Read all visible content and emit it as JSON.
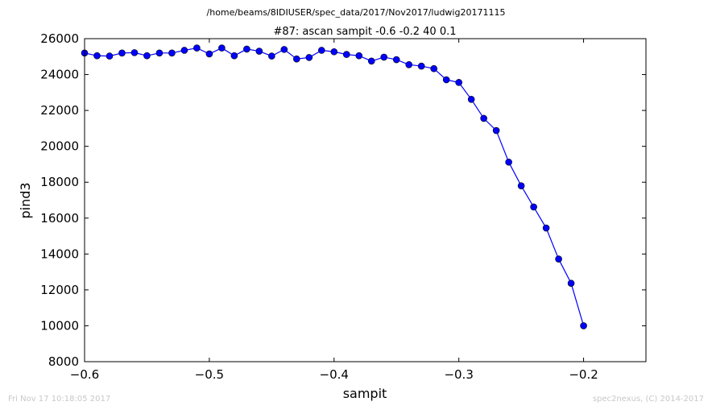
{
  "chart_data": {
    "type": "line",
    "figure_title": "/home/beams/8IDIUSER/spec_data/2017/Nov2017/ludwig20171115",
    "title": "#87: ascan  sampit -0.6 -0.2  40 0.1",
    "xlabel": "sampit",
    "ylabel": "pind3",
    "xlim": [
      -0.6,
      -0.15
    ],
    "ylim": [
      8000,
      26000
    ],
    "xticks": [
      -0.6,
      -0.5,
      -0.4,
      -0.3,
      -0.2
    ],
    "xtick_labels": [
      "−0.6",
      "−0.5",
      "−0.4",
      "−0.3",
      "−0.2"
    ],
    "yticks": [
      8000,
      10000,
      12000,
      14000,
      16000,
      18000,
      20000,
      22000,
      24000,
      26000
    ],
    "ytick_labels": [
      "8000",
      "10000",
      "12000",
      "14000",
      "16000",
      "18000",
      "20000",
      "22000",
      "24000",
      "26000"
    ],
    "grid": false,
    "series": [
      {
        "color": "#0000ff",
        "marker": "circle",
        "x": [
          -0.6,
          -0.59,
          -0.58,
          -0.57,
          -0.56,
          -0.55,
          -0.54,
          -0.53,
          -0.52,
          -0.51,
          -0.5,
          -0.49,
          -0.48,
          -0.47,
          -0.46,
          -0.45,
          -0.44,
          -0.43,
          -0.42,
          -0.41,
          -0.4,
          -0.39,
          -0.38,
          -0.37,
          -0.36,
          -0.35,
          -0.34,
          -0.33,
          -0.32,
          -0.31,
          -0.3,
          -0.29,
          -0.28,
          -0.27,
          -0.26,
          -0.25,
          -0.24,
          -0.23,
          -0.22,
          -0.21,
          -0.2
        ],
        "y": [
          25200,
          25050,
          25030,
          25200,
          25220,
          25050,
          25200,
          25200,
          25350,
          25480,
          25150,
          25480,
          25050,
          25420,
          25300,
          25030,
          25400,
          24870,
          24950,
          25350,
          25270,
          25120,
          25050,
          24750,
          24970,
          24830,
          24550,
          24470,
          24330,
          23710,
          23560,
          22620,
          21560,
          20880,
          19120,
          17800,
          16620,
          15450,
          13720,
          12370,
          10000
        ]
      }
    ]
  },
  "footer": {
    "timestamp": "Fri Nov 17 10:18:05 2017",
    "credit": "spec2nexus, (C) 2014-2017"
  }
}
